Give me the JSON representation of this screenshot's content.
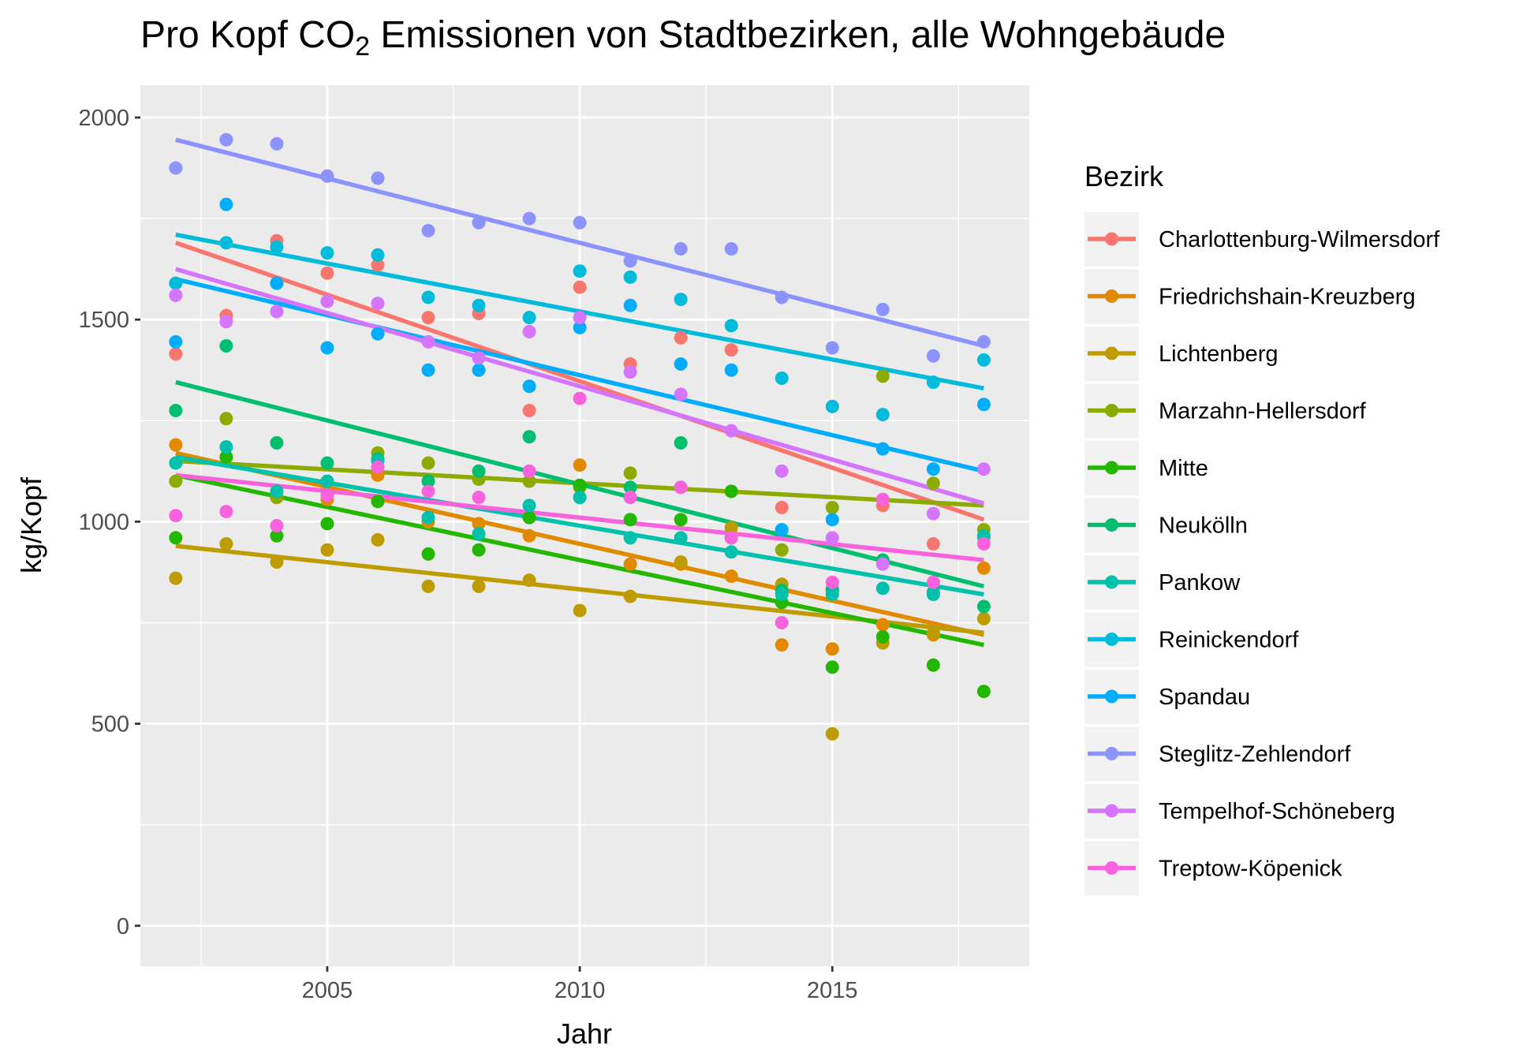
{
  "chart_data": {
    "type": "scatter",
    "title": "Pro Kopf CO₂ Emissionen von Stadtbezirken, alle Wohngebäude",
    "title_parts": [
      "Pro Kopf CO",
      "2",
      " Emissionen von Stadtbezirken, alle Wohngebäude"
    ],
    "xlabel": "Jahr",
    "ylabel": "kg/Kopf",
    "xlim": [
      2001.3,
      2018.9
    ],
    "ylim": [
      -100,
      2080
    ],
    "x_ticks": [
      2005,
      2010,
      2015
    ],
    "x_tick_labels": [
      "2005",
      "2010",
      "2015"
    ],
    "y_ticks": [
      0,
      500,
      1000,
      1500,
      2000
    ],
    "y_tick_labels": [
      "0",
      "500",
      "1000",
      "1500",
      "2000"
    ],
    "grid": true,
    "legend_title": "Bezirk",
    "legend_position": "right",
    "trend_lines": "linear fit per series",
    "x": [
      2002,
      2003,
      2004,
      2005,
      2006,
      2007,
      2008,
      2009,
      2010,
      2011,
      2012,
      2013,
      2014,
      2015,
      2016,
      2017,
      2018
    ],
    "series": [
      {
        "name": "Charlottenburg-Wilmersdorf",
        "color": "#F8766D",
        "values": [
          1415,
          1510,
          1695,
          1615,
          1635,
          1505,
          1515,
          1275,
          1580,
          1390,
          1455,
          1425,
          1035,
          835,
          1040,
          945,
          960
        ],
        "fit": [
          1690,
          1005
        ]
      },
      {
        "name": "Friedrichshain-Kreuzberg",
        "color": "#E18A00",
        "values": [
          1190,
          1160,
          1060,
          1055,
          1115,
          1000,
          995,
          965,
          1140,
          895,
          895,
          865,
          695,
          685,
          745,
          720,
          885
        ],
        "fit": [
          1170,
          720
        ]
      },
      {
        "name": "Lichtenberg",
        "color": "#BE9C00",
        "values": [
          860,
          945,
          900,
          930,
          955,
          840,
          840,
          855,
          780,
          815,
          900,
          985,
          845,
          475,
          700,
          725,
          760
        ],
        "fit": [
          940,
          725
        ]
      },
      {
        "name": "Marzahn-Hellersdorf",
        "color": "#8CAB00",
        "values": [
          1100,
          1255,
          1060,
          1065,
          1170,
          1145,
          1105,
          1100,
          1085,
          1120,
          1085,
          1075,
          930,
          1035,
          1360,
          1095,
          980
        ],
        "fit": [
          1150,
          1040
        ]
      },
      {
        "name": "Mitte",
        "color": "#24B700",
        "values": [
          960,
          1160,
          965,
          995,
          1050,
          920,
          930,
          1010,
          1090,
          1005,
          1005,
          1075,
          800,
          640,
          715,
          645,
          580
        ],
        "fit": [
          1115,
          695
        ]
      },
      {
        "name": "Neukölln",
        "color": "#00BE70",
        "values": [
          1275,
          1435,
          1195,
          1145,
          1155,
          1100,
          1125,
          1210,
          1060,
          1085,
          1195,
          960,
          830,
          830,
          905,
          825,
          790
        ],
        "fit": [
          1345,
          840
        ]
      },
      {
        "name": "Pankow",
        "color": "#00C1AB",
        "values": [
          1145,
          1185,
          1075,
          1100,
          1150,
          1010,
          970,
          1040,
          1060,
          960,
          960,
          925,
          820,
          820,
          835,
          820,
          965
        ],
        "fit": [
          1160,
          820
        ]
      },
      {
        "name": "Reinickendorf",
        "color": "#00BBDA",
        "values": [
          1590,
          1690,
          1680,
          1665,
          1660,
          1555,
          1535,
          1505,
          1620,
          1605,
          1550,
          1485,
          1355,
          1285,
          1265,
          1345,
          1400
        ],
        "fit": [
          1710,
          1330
        ]
      },
      {
        "name": "Spandau",
        "color": "#00ACFC",
        "values": [
          1445,
          1785,
          1590,
          1430,
          1465,
          1375,
          1375,
          1335,
          1480,
          1535,
          1390,
          1375,
          980,
          1005,
          1180,
          1130,
          1290
        ],
        "fit": [
          1600,
          1125
        ]
      },
      {
        "name": "Steglitz-Zehlendorf",
        "color": "#8B93FF",
        "values": [
          1875,
          1945,
          1935,
          1855,
          1850,
          1720,
          1740,
          1750,
          1740,
          1645,
          1675,
          1675,
          1555,
          1430,
          1525,
          1410,
          1445
        ],
        "fit": [
          1945,
          1435
        ]
      },
      {
        "name": "Tempelhof-Schöneberg",
        "color": "#D575FE",
        "values": [
          1560,
          1495,
          1520,
          1545,
          1540,
          1445,
          1405,
          1470,
          1505,
          1370,
          1315,
          1225,
          1125,
          960,
          895,
          1020,
          1130
        ],
        "fit": [
          1625,
          1045
        ]
      },
      {
        "name": "Treptow-Köpenick",
        "color": "#F962DD",
        "values": [
          1015,
          1025,
          990,
          1065,
          1135,
          1075,
          1060,
          1125,
          1305,
          1060,
          1085,
          960,
          750,
          850,
          1055,
          850,
          945
        ],
        "fit": [
          1115,
          905
        ]
      }
    ]
  }
}
